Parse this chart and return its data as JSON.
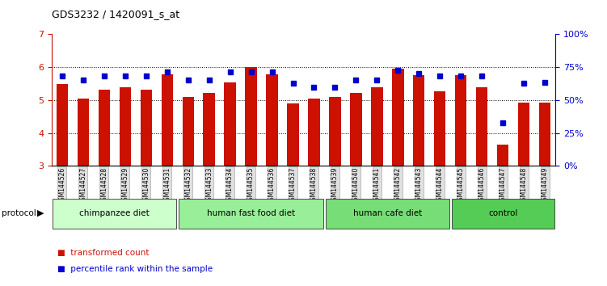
{
  "title": "GDS3232 / 1420091_s_at",
  "samples": [
    "GSM144526",
    "GSM144527",
    "GSM144528",
    "GSM144529",
    "GSM144530",
    "GSM144531",
    "GSM144532",
    "GSM144533",
    "GSM144534",
    "GSM144535",
    "GSM144536",
    "GSM144537",
    "GSM144538",
    "GSM144539",
    "GSM144540",
    "GSM144541",
    "GSM144542",
    "GSM144543",
    "GSM144544",
    "GSM144545",
    "GSM144546",
    "GSM144547",
    "GSM144548",
    "GSM144549"
  ],
  "bar_values": [
    5.5,
    5.05,
    5.32,
    5.38,
    5.32,
    5.78,
    5.1,
    5.22,
    5.55,
    6.0,
    5.78,
    4.9,
    5.05,
    5.1,
    5.22,
    5.38,
    5.95,
    5.75,
    5.28,
    5.75,
    5.38,
    3.65,
    4.92,
    4.93
  ],
  "percentile_values": [
    5.73,
    5.62,
    5.73,
    5.73,
    5.73,
    5.85,
    5.62,
    5.62,
    5.85,
    5.85,
    5.85,
    5.52,
    5.4,
    5.4,
    5.62,
    5.62,
    5.9,
    5.8,
    5.73,
    5.73,
    5.73,
    4.3,
    5.52,
    5.55
  ],
  "groups": [
    {
      "label": "chimpanzee diet",
      "start": 0,
      "end": 6,
      "color": "#ccffcc"
    },
    {
      "label": "human fast food diet",
      "start": 6,
      "end": 13,
      "color": "#99ee99"
    },
    {
      "label": "human cafe diet",
      "start": 13,
      "end": 19,
      "color": "#77dd77"
    },
    {
      "label": "control",
      "start": 19,
      "end": 24,
      "color": "#55cc55"
    }
  ],
  "bar_color": "#cc1100",
  "dot_color": "#0000cc",
  "ylim_left": [
    3,
    7
  ],
  "ylim_right": [
    0,
    100
  ],
  "yticks_left": [
    3,
    4,
    5,
    6,
    7
  ],
  "yticks_right": [
    0,
    25,
    50,
    75,
    100
  ],
  "grid_lines": [
    4,
    5,
    6
  ],
  "background_color": "#ffffff"
}
